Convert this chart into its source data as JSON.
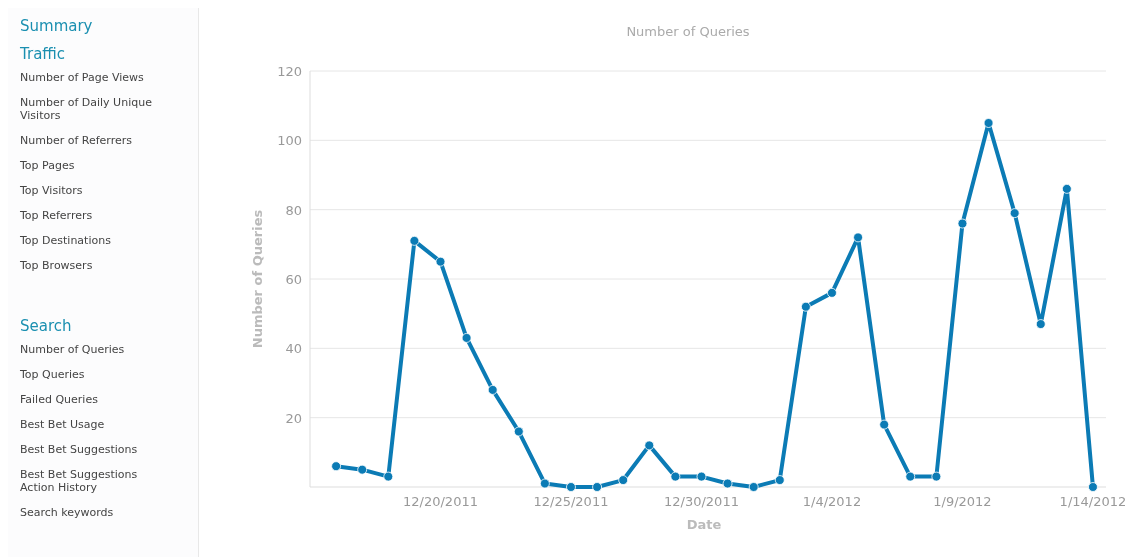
{
  "chart_data": [
    {
      "type": "other",
      "title": "Summary"
    },
    {
      "type": "other",
      "title": "Traffic",
      "annotations": [
        "Number of Page Views",
        "Number of Daily Unique Visitors",
        "Number of Referrers",
        "Top Pages",
        "Top Visitors",
        "Top Referrers",
        "Top Destinations",
        "Top Browsers"
      ]
    },
    {
      "type": "other",
      "title": "Search",
      "annotations": [
        "Number of Queries",
        "Top Queries",
        "Failed Queries",
        "Best Bet Usage",
        "Best Bet Suggestions",
        "Best Bet Suggestions Action History",
        "Search keywords"
      ]
    },
    {
      "type": "line",
      "title": "Number of Queries",
      "xlabel": "Date",
      "ylabel": "Number of Queries",
      "x": [
        "2011-12-16",
        "2011-12-17",
        "2011-12-18",
        "2011-12-19",
        "2011-12-20",
        "2011-12-21",
        "2011-12-22",
        "2011-12-23",
        "2011-12-24",
        "2011-12-25",
        "2011-12-26",
        "2011-12-27",
        "2011-12-28",
        "2011-12-29",
        "2011-12-30",
        "2011-12-31",
        "2012-01-01",
        "2012-01-02",
        "2012-01-03",
        "2012-01-04",
        "2012-01-05",
        "2012-01-06",
        "2012-01-07",
        "2012-01-08",
        "2012-01-09",
        "2012-01-10",
        "2012-01-11",
        "2012-01-12",
        "2012-01-13",
        "2012-01-14"
      ],
      "series": [
        {
          "color": "#0b7bb5",
          "values": [
            6,
            5,
            3,
            71,
            65,
            43,
            28,
            16,
            1,
            0,
            0,
            2,
            12,
            3,
            3,
            1,
            0,
            2,
            52,
            56,
            72,
            18,
            3,
            3,
            76,
            105,
            79,
            47,
            86,
            0
          ]
        }
      ],
      "xlim": [
        "2011-12-15",
        "2012-01-14T12:00"
      ],
      "xticks": [
        {
          "value": "2011-12-20",
          "label": "12/20/2011"
        },
        {
          "value": "2011-12-25",
          "label": "12/25/2011"
        },
        {
          "value": "2011-12-30",
          "label": "12/30/2011"
        },
        {
          "value": "2012-01-04",
          "label": "1/4/2012"
        },
        {
          "value": "2012-01-09",
          "label": "1/9/2012"
        },
        {
          "value": "2012-01-14",
          "label": "1/14/2012"
        }
      ],
      "ylim": [
        0,
        120
      ],
      "yticks": [
        20,
        40,
        60,
        80,
        100,
        120
      ],
      "grid": "y",
      "marker": "circle",
      "line_style": "solid"
    }
  ]
}
